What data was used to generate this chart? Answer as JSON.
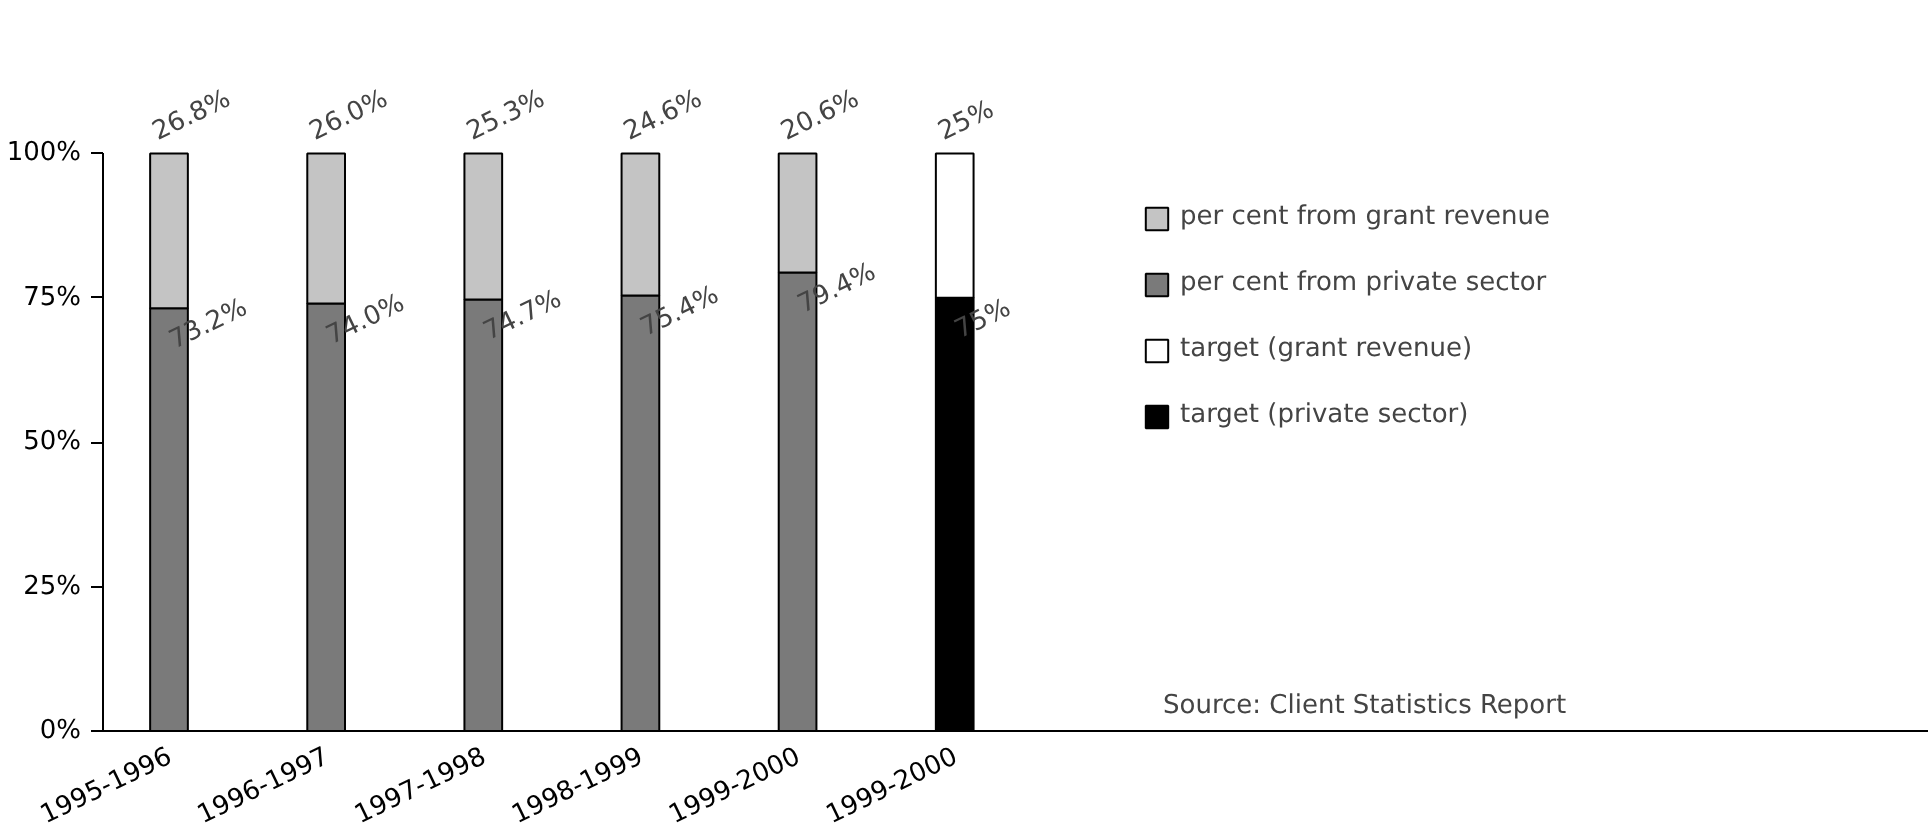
{
  "chart_data": {
    "type": "bar",
    "stacked": true,
    "categories": [
      "1995-1996",
      "1996-1997",
      "1997-1998",
      "1998-1999",
      "1999-2000",
      "1999-2000"
    ],
    "series": [
      {
        "name": "per cent from private sector",
        "color": "#7a7a7a",
        "values": [
          73.2,
          74.0,
          74.7,
          75.4,
          79.4,
          null
        ],
        "value_labels": [
          "73.2%",
          "74.0%",
          "74.7%",
          "75.4%",
          "79.4%",
          null
        ]
      },
      {
        "name": "per cent from grant revenue",
        "color": "#c4c4c4",
        "values": [
          26.8,
          26.0,
          25.3,
          24.6,
          20.6,
          null
        ],
        "value_labels": [
          "26.8%",
          "26.0%",
          "25.3%",
          "24.6%",
          "20.6%",
          null
        ]
      },
      {
        "name": "target (private sector)",
        "color": "#000000",
        "values": [
          null,
          null,
          null,
          null,
          null,
          75
        ],
        "value_labels": [
          null,
          null,
          null,
          null,
          null,
          "75%"
        ]
      },
      {
        "name": "target (grant revenue)",
        "color": "#ffffff",
        "values": [
          null,
          null,
          null,
          null,
          null,
          25
        ],
        "value_labels": [
          null,
          null,
          null,
          null,
          null,
          "25%"
        ]
      }
    ],
    "ylim": [
      0,
      100
    ],
    "yticks": [
      {
        "value": 0,
        "label": "0%"
      },
      {
        "value": 25,
        "label": "25%"
      },
      {
        "value": 50,
        "label": "50%"
      },
      {
        "value": 75,
        "label": "75%"
      },
      {
        "value": 100,
        "label": "100%"
      }
    ],
    "grid": false,
    "legend": "right",
    "annotations": [
      "Source:  Client Statistics Report"
    ]
  }
}
